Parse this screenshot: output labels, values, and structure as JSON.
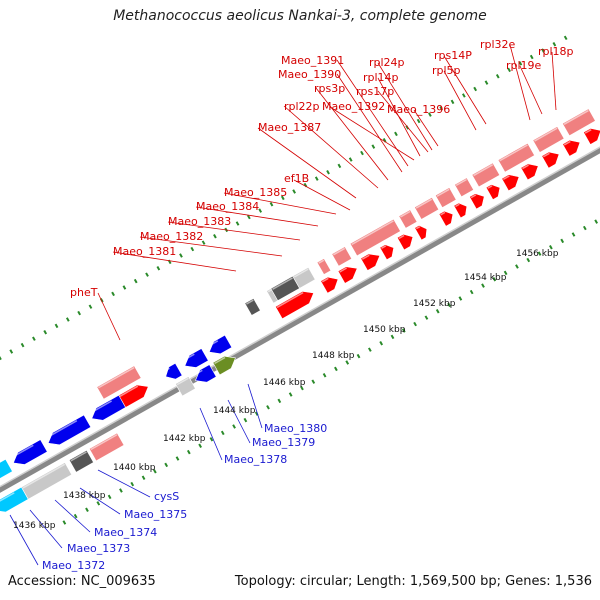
{
  "title": "Methanococcus aeolicus Nankai-3, complete genome",
  "footer": {
    "accession": "Accession: NC_009635",
    "summary": "Topology: circular; Length: 1,569,500 bp; Genes: 1,536"
  },
  "colors": {
    "forward_strong": "#ff0000",
    "forward_light": "#f08080",
    "reverse_strong": "#0000ee",
    "reverse_cyan": "#00c8ff",
    "grey_light": "#c8c8c8",
    "grey_dark": "#555555",
    "olive": "#6b8e23",
    "backbone": "#888888",
    "tick": "#2a8a2a",
    "label_top": "#d40000",
    "label_bottom": "#1a1ad0"
  },
  "kbp_ticks": [
    {
      "label": "1436 kbp"
    },
    {
      "label": "1438 kbp"
    },
    {
      "label": "1440 kbp"
    },
    {
      "label": "1442 kbp"
    },
    {
      "label": "1444 kbp"
    },
    {
      "label": "1446 kbp"
    },
    {
      "label": "1448 kbp"
    },
    {
      "label": "1450 kbp"
    },
    {
      "label": "1452 kbp"
    },
    {
      "label": "1454 kbp"
    },
    {
      "label": "1456 kbp"
    }
  ],
  "top_labels": [
    {
      "name": "Maeo_1381"
    },
    {
      "name": "Maeo_1382"
    },
    {
      "name": "Maeo_1383"
    },
    {
      "name": "Maeo_1384"
    },
    {
      "name": "Maeo_1385"
    },
    {
      "name": "ef1B"
    },
    {
      "name": "Maeo_1387"
    },
    {
      "name": "rpl22p"
    },
    {
      "name": "rps3p"
    },
    {
      "name": "Maeo_1390"
    },
    {
      "name": "Maeo_1391"
    },
    {
      "name": "Maeo_1392"
    },
    {
      "name": "rpl14p"
    },
    {
      "name": "rps17p"
    },
    {
      "name": "rpl24p"
    },
    {
      "name": "Maeo_1396"
    },
    {
      "name": "rpl5p"
    },
    {
      "name": "rps14P"
    },
    {
      "name": "rpl32e"
    },
    {
      "name": "rpl19e"
    },
    {
      "name": "rpl18p"
    },
    {
      "name": "pheT"
    }
  ],
  "bottom_labels": [
    {
      "name": "Maeo_1372"
    },
    {
      "name": "Maeo_1373"
    },
    {
      "name": "Maeo_1374"
    },
    {
      "name": "Maeo_1375"
    },
    {
      "name": "cysS"
    },
    {
      "name": "Maeo_1378"
    },
    {
      "name": "Maeo_1379"
    },
    {
      "name": "Maeo_1380"
    }
  ]
}
